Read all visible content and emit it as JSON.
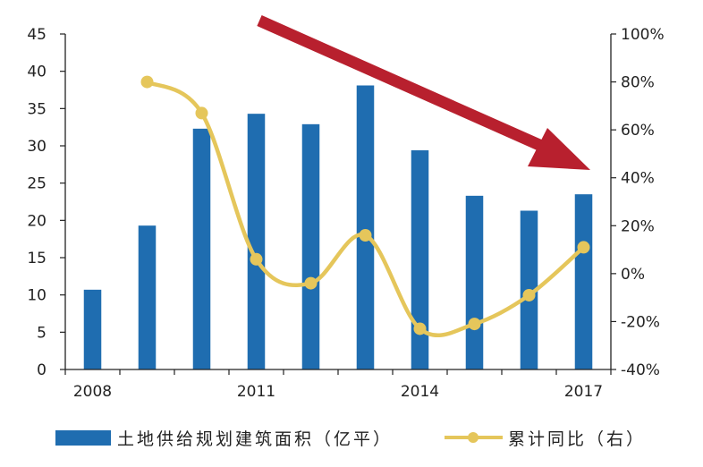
{
  "chart_data": {
    "type": "bar",
    "x": [
      2008,
      2009,
      2010,
      2011,
      2012,
      2013,
      2014,
      2015,
      2016,
      2017
    ],
    "x_tick_labels": [
      "2008",
      "2011",
      "2014",
      "2017"
    ],
    "series": [
      {
        "name": "土地供给规划建筑面积（亿平）",
        "type": "bar",
        "axis": "left",
        "color": "#1F6DB0",
        "values": [
          10.7,
          19.3,
          32.3,
          34.3,
          32.9,
          38.1,
          29.4,
          23.3,
          21.3,
          23.5
        ]
      },
      {
        "name": "累计同比（右）",
        "type": "line",
        "axis": "right",
        "color": "#E5C65B",
        "values": [
          null,
          80.0,
          67.0,
          6.0,
          -4.0,
          16.0,
          -23.0,
          -21.0,
          -9.0,
          11.0
        ]
      }
    ],
    "y_left": {
      "min": 0,
      "max": 45,
      "ticks": [
        "0",
        "5",
        "10",
        "15",
        "20",
        "25",
        "30",
        "35",
        "40",
        "45"
      ]
    },
    "y_right": {
      "min": -40,
      "max": 100,
      "ticks": [
        "-40%",
        "-20%",
        "0%",
        "20%",
        "40%",
        "60%",
        "80%",
        "100%"
      ]
    },
    "annotation": {
      "type": "trend-arrow",
      "direction": "down",
      "color": "#B8202E"
    },
    "grid": false,
    "legend_position": "bottom"
  }
}
